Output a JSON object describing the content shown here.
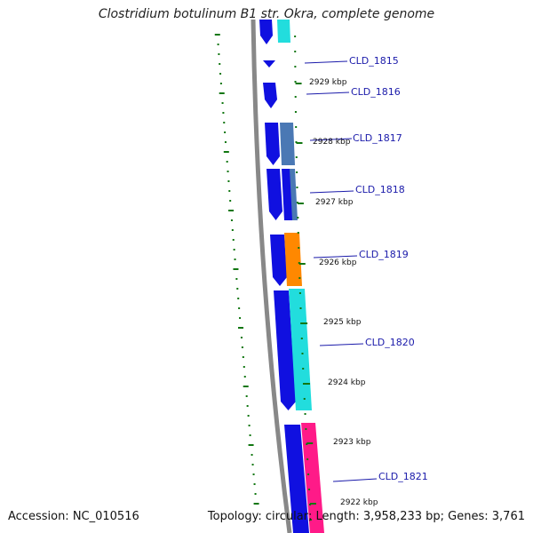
{
  "title": "Clostridium botulinum B1 str. Okra, complete genome",
  "footer": {
    "accession": "Accession: NC_010516",
    "topology": "Topology: circular; Length: 3,958,233 bp; Genes: 3,761"
  },
  "colors": {
    "backbone": "#888888",
    "forward_gene": "#1010e0",
    "label": "#1a1aaa",
    "tick": "#117711",
    "gc_dots": "#117711",
    "cyan": "#22dddd",
    "steelblue": "#4a78b4",
    "orange": "#ff8800",
    "pink": "#ff1a88"
  },
  "tick_labels": [
    "2929 kbp",
    "2928 kbp",
    "2927 kbp",
    "2926 kbp",
    "2925 kbp",
    "2924 kbp",
    "2923 kbp",
    "2922 kbp"
  ],
  "gene_labels": [
    "CLD_1815",
    "CLD_1816",
    "CLD_1817",
    "CLD_1818",
    "CLD_1819",
    "CLD_1820",
    "CLD_1821"
  ]
}
